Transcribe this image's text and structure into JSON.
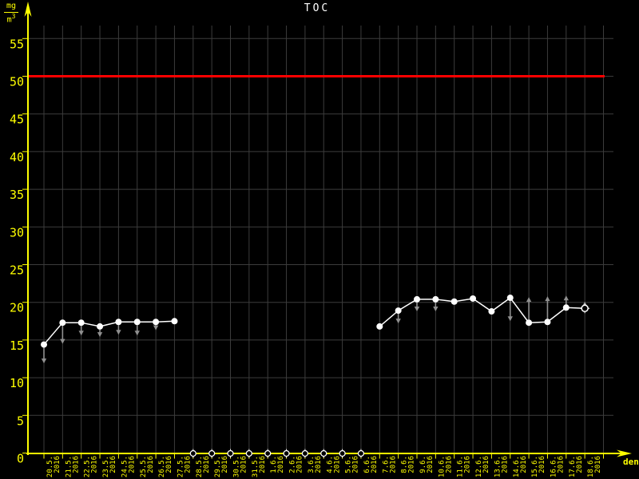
{
  "unit": {
    "numerator": "mg",
    "denominator_base": "m",
    "denominator_exponent": "3"
  },
  "colors": {
    "background": "#000000",
    "axis": "#ffff00",
    "grid": "#3c3c3c",
    "series": "#ffffff",
    "arrow": "#909090",
    "limit": "#ff0000",
    "title": "#ffffff"
  },
  "chart_data": {
    "type": "line",
    "title": "TOC",
    "ylabel": "mg/m3",
    "xlabel": "den",
    "ylim": [
      0,
      57
    ],
    "y_ticks": [
      0,
      5,
      10,
      15,
      20,
      25,
      30,
      35,
      40,
      45,
      50,
      55
    ],
    "grid": "on",
    "legend": "none",
    "year": "2016",
    "limit_line": {
      "value": 50
    },
    "series": [
      {
        "name": "TOC",
        "points": [
          {
            "label": "20.5.",
            "value": 14.4,
            "arrow": "down",
            "arrow_tip": 11.9
          },
          {
            "label": "21.5.",
            "value": 17.3,
            "arrow": "down",
            "arrow_tip": 14.5
          },
          {
            "label": "22.5.",
            "value": 17.3,
            "arrow": "down",
            "arrow_tip": 15.6
          },
          {
            "label": "23.5.",
            "value": 16.8,
            "arrow": "down",
            "arrow_tip": 15.4
          },
          {
            "label": "24.5.",
            "value": 17.4,
            "arrow": "down",
            "arrow_tip": 15.7
          },
          {
            "label": "25.5.",
            "value": 17.4,
            "arrow": "down",
            "arrow_tip": 15.6
          },
          {
            "label": "26.5.",
            "value": 17.4,
            "arrow": "down",
            "arrow_tip": 16.3
          },
          {
            "label": "27.5.",
            "value": 17.5,
            "arrow": null,
            "arrow_tip": null
          },
          {
            "label": "28.5.",
            "value": null
          },
          {
            "label": "29.5.",
            "value": null
          },
          {
            "label": "30.5.",
            "value": null
          },
          {
            "label": "31.5.",
            "value": null
          },
          {
            "label": "1.6.",
            "value": null
          },
          {
            "label": "2.6.",
            "value": null
          },
          {
            "label": "3.6.",
            "value": null
          },
          {
            "label": "4.6.",
            "value": null
          },
          {
            "label": "5.6.",
            "value": null
          },
          {
            "label": "6.6.",
            "value": null
          },
          {
            "label": "7.6.",
            "value": 16.8,
            "arrow": null,
            "arrow_tip": null
          },
          {
            "label": "8.6.",
            "value": 18.9,
            "arrow": "down",
            "arrow_tip": 17.2
          },
          {
            "label": "9.6.",
            "value": 20.4,
            "arrow": "down",
            "arrow_tip": 18.8
          },
          {
            "label": "10.6.",
            "value": 20.4,
            "arrow": "down",
            "arrow_tip": 18.8
          },
          {
            "label": "11.6.",
            "value": 20.1,
            "arrow": null,
            "arrow_tip": null
          },
          {
            "label": "12.6.",
            "value": 20.5,
            "arrow": null,
            "arrow_tip": null
          },
          {
            "label": "13.6.",
            "value": 18.8,
            "arrow": null,
            "arrow_tip": null
          },
          {
            "label": "14.6.",
            "value": 20.6,
            "arrow": "down",
            "arrow_tip": 17.5
          },
          {
            "label": "15.6.",
            "value": 17.3,
            "arrow": "up",
            "arrow_tip": 20.7
          },
          {
            "label": "16.6.",
            "value": 17.4,
            "arrow": "up",
            "arrow_tip": 20.8
          },
          {
            "label": "17.6.",
            "value": 19.3,
            "arrow": "up",
            "arrow_tip": 20.9
          },
          {
            "label": "18.6.",
            "value": 19.2,
            "arrow": "up",
            "arrow_tip": 20.1,
            "marker": "open-cross"
          }
        ]
      }
    ]
  }
}
